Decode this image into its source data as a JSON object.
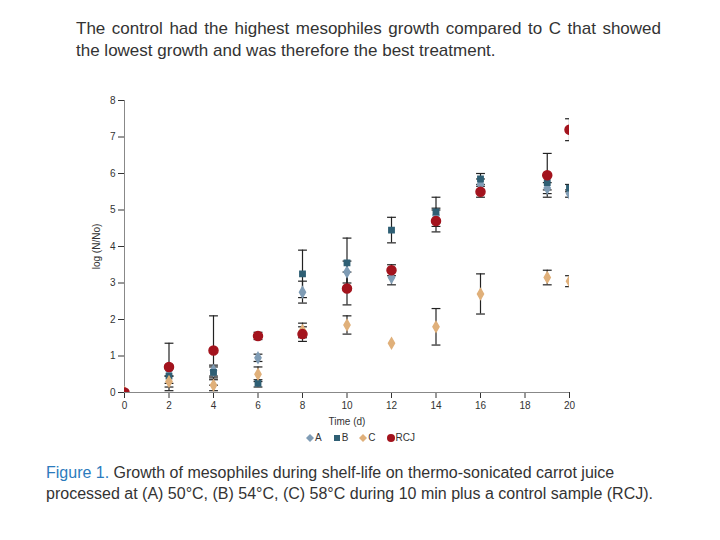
{
  "chart_data": {
    "type": "scatter",
    "title": "The control had the highest mesophiles growth compared to C that showed the lowest growth and was therefore the best treatment.",
    "caption_label": "Figure 1.",
    "caption": "Growth of mesophiles during shelf-life on thermo-sonicated carrot juice processed at (A) 50°C, (B) 54°C, (C) 58°C during 10 min  plus a control sample (RCJ).",
    "x_label": "Time (d)",
    "y_label": "log (N/No)",
    "x": [
      0,
      2,
      4,
      6,
      8,
      10,
      12,
      14,
      16,
      19,
      20
    ],
    "xlim": [
      0,
      20
    ],
    "xticks": [
      0,
      2,
      4,
      6,
      8,
      10,
      12,
      14,
      16,
      18,
      20
    ],
    "ylim": [
      0,
      8
    ],
    "yticks": [
      0,
      1,
      2,
      3,
      4,
      5,
      6,
      7,
      8
    ],
    "grid": false,
    "legend": "bottom",
    "series": [
      {
        "name": "A",
        "color": "#7f9cb5",
        "marker": "diamond",
        "values": [
          0,
          0.6,
          0.6,
          0.95,
          2.75,
          3.3,
          3.15,
          4.85,
          5.7,
          5.6,
          5.45
        ],
        "error": [
          null,
          0.15,
          0.15,
          0.1,
          0.3,
          0.3,
          0.2,
          0.2,
          0.15,
          0.15,
          0.1
        ]
      },
      {
        "name": "B",
        "color": "#2f5f74",
        "marker": "square",
        "values": [
          0,
          0.45,
          0.55,
          0.25,
          3.25,
          3.55,
          4.45,
          4.95,
          5.85,
          5.75,
          5.6
        ],
        "error": [
          null,
          0.2,
          0.15,
          0.1,
          0.65,
          0.68,
          0.35,
          0.4,
          0.15,
          0.2,
          0.1
        ]
      },
      {
        "name": "C",
        "color": "#e0b07a",
        "marker": "diamond",
        "values": [
          0,
          0.3,
          0.2,
          0.5,
          1.7,
          1.85,
          1.35,
          1.8,
          2.7,
          3.15,
          3.05
        ],
        "error": [
          null,
          0.15,
          0.15,
          0.2,
          0.2,
          0.25,
          null,
          0.5,
          0.55,
          0.2,
          0.15
        ]
      },
      {
        "name": "RCJ",
        "color": "#a3131d",
        "marker": "circle",
        "values": [
          0,
          0.7,
          1.15,
          1.55,
          1.6,
          2.85,
          3.35,
          4.7,
          5.5,
          5.95,
          7.2
        ],
        "error": [
          null,
          0.65,
          0.95,
          0.1,
          0.2,
          0.45,
          0.15,
          0.3,
          0.15,
          0.6,
          0.3
        ]
      }
    ]
  }
}
